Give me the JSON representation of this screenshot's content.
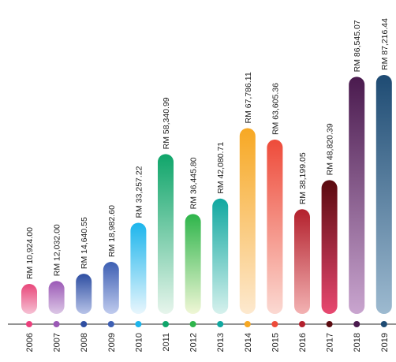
{
  "chart_data": {
    "type": "bar",
    "title": "",
    "xlabel": "",
    "ylabel": "",
    "value_prefix": "RM",
    "categories": [
      "2006",
      "2007",
      "2008",
      "2009",
      "2010",
      "2011",
      "2012",
      "2013",
      "2014",
      "2015",
      "2016",
      "2017",
      "2018",
      "2019"
    ],
    "values": [
      10924.0,
      12032.0,
      14640.55,
      18982.6,
      33257.22,
      58340.99,
      36445.8,
      42080.71,
      67786.11,
      63605.36,
      38199.05,
      48820.39,
      86545.07,
      87216.44
    ],
    "data_labels": [
      "RM 10,924.00",
      "RM 12,032.00",
      "RM 14,640.55",
      "RM 18,982.60",
      "RM 33,257.22",
      "RM 58,340.99",
      "RM 36,445.80",
      "RM 42,080.71",
      "RM 67,786.11",
      "RM 63,605.36",
      "RM 38,199.05",
      "RM 48,820.39",
      "RM 86,545.07",
      "RM 87,216.44"
    ],
    "bar_colors_top": [
      "#e8477a",
      "#9b59b6",
      "#2f4fa2",
      "#3d5fb3",
      "#1cb5ec",
      "#0fa56a",
      "#2eb54b",
      "#10a8a0",
      "#f7a823",
      "#ee4b3a",
      "#b3202d",
      "#5a0a0f",
      "#4a1a4e",
      "#1e4b73"
    ],
    "bar_colors_bottom": [
      "#f6c1d4",
      "#dcc7e6",
      "#b7c3e8",
      "#c0cbee",
      "#e8f6fd",
      "#e7f5ec",
      "#f0f7d6",
      "#d6f1ed",
      "#fde9cf",
      "#fbd9d2",
      "#f3b2b2",
      "#e84870",
      "#c9a5cf",
      "#9dbad0"
    ],
    "dot_colors": [
      "#ec3f7c",
      "#9b59b6",
      "#2f4fa2",
      "#3d5fb3",
      "#1cb5ec",
      "#0fa56a",
      "#2eb54b",
      "#10a8a0",
      "#f7a823",
      "#ee4b3a",
      "#b3202d",
      "#5a0a0f",
      "#4a1a4e",
      "#1e4b73"
    ],
    "ylim": [
      0,
      100000
    ],
    "grid": false,
    "legend": "none"
  }
}
